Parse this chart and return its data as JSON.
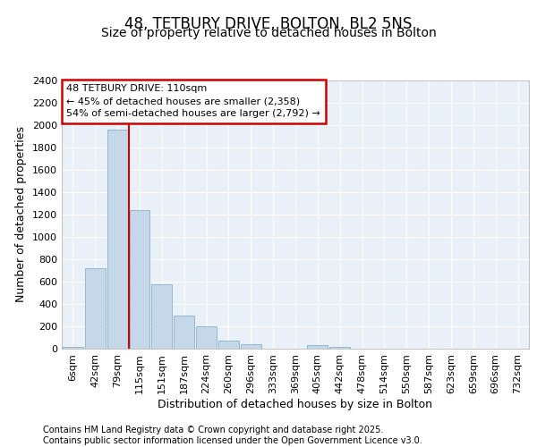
{
  "title": "48, TETBURY DRIVE, BOLTON, BL2 5NS",
  "subtitle": "Size of property relative to detached houses in Bolton",
  "xlabel": "Distribution of detached houses by size in Bolton",
  "ylabel": "Number of detached properties",
  "annotation_title": "48 TETBURY DRIVE: 110sqm",
  "annotation_line1": "← 45% of detached houses are smaller (2,358)",
  "annotation_line2": "54% of semi-detached houses are larger (2,792) →",
  "footer_line1": "Contains HM Land Registry data © Crown copyright and database right 2025.",
  "footer_line2": "Contains public sector information licensed under the Open Government Licence v3.0.",
  "bin_labels": [
    "6sqm",
    "42sqm",
    "79sqm",
    "115sqm",
    "151sqm",
    "187sqm",
    "224sqm",
    "260sqm",
    "296sqm",
    "333sqm",
    "369sqm",
    "405sqm",
    "442sqm",
    "478sqm",
    "514sqm",
    "550sqm",
    "587sqm",
    "623sqm",
    "659sqm",
    "696sqm",
    "732sqm"
  ],
  "bar_values": [
    15,
    720,
    1960,
    1240,
    580,
    300,
    200,
    75,
    40,
    2,
    2,
    30,
    15,
    4,
    2,
    1,
    0,
    0,
    0,
    0,
    0
  ],
  "bar_color": "#c5d8ea",
  "bar_edge_color": "#8ab0cc",
  "vline_color": "#cc0000",
  "vline_pos": 2.5,
  "ylim": [
    0,
    2400
  ],
  "yticks": [
    0,
    200,
    400,
    600,
    800,
    1000,
    1200,
    1400,
    1600,
    1800,
    2000,
    2200,
    2400
  ],
  "background_color": "#eaf0f7",
  "grid_color": "#ffffff",
  "title_fontsize": 12,
  "subtitle_fontsize": 10,
  "axis_fontsize": 9,
  "tick_fontsize": 8,
  "footer_fontsize": 7
}
